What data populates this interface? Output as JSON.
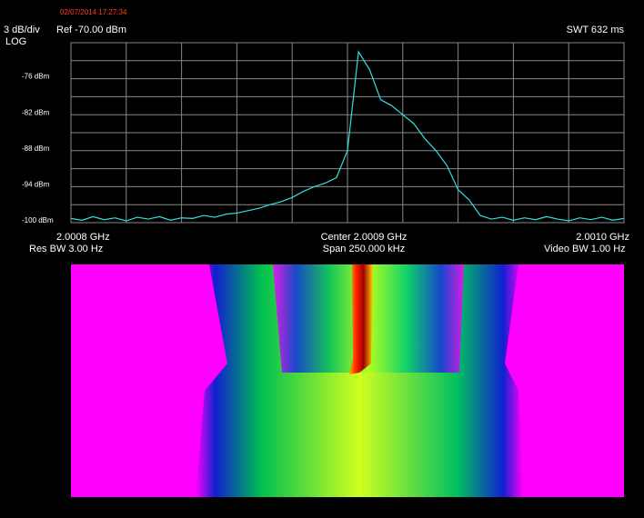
{
  "chart_data": {
    "type": "line",
    "timestamp": "02/07/2014 17:27:34",
    "scale_label": "3 dB/div",
    "ref_label": "Ref -70.00  dBm",
    "sweep_label": "SWT 632 ms",
    "scale_mode": "LOG",
    "start_label": "2.0008 GHz",
    "center_label": "Center 2.0009 GHz",
    "stop_label": "2.0010 GHz",
    "rbw_label": "Res BW 3.00  Hz",
    "span_label": "Span 250.000 kHz",
    "vbw_label": "Video BW 1.00  Hz",
    "x": [
      2.000775,
      2.00078,
      2.000785,
      2.00079,
      2.000795,
      2.0008,
      2.000805,
      2.00081,
      2.000815,
      2.00082,
      2.000825,
      2.00083,
      2.000835,
      2.00084,
      2.000845,
      2.00085,
      2.000855,
      2.00086,
      2.000865,
      2.00087,
      2.000875,
      2.00088,
      2.000885,
      2.00089,
      2.000895,
      2.0009,
      2.000905,
      2.00091,
      2.000915,
      2.00092,
      2.000925,
      2.00093,
      2.000935,
      2.00094,
      2.000945,
      2.00095,
      2.000955,
      2.00096,
      2.000965,
      2.00097,
      2.000975,
      2.00098,
      2.000985,
      2.00099,
      2.000995,
      2.001,
      2.001005,
      2.00101,
      2.001015,
      2.00102,
      2.001025
    ],
    "series": [
      {
        "color": "#30e0e0",
        "values": [
          -99.3,
          -99.6,
          -99.0,
          -99.5,
          -99.2,
          -99.7,
          -99.1,
          -99.4,
          -99.0,
          -99.6,
          -99.2,
          -99.3,
          -98.8,
          -99.1,
          -98.6,
          -98.4,
          -98.0,
          -97.6,
          -97.0,
          -96.5,
          -95.8,
          -94.8,
          -94.0,
          -93.4,
          -92.5,
          -88.0,
          -71.5,
          -74.5,
          -79.5,
          -80.5,
          -82.0,
          -83.5,
          -86.0,
          -88.0,
          -90.5,
          -94.5,
          -96.2,
          -98.8,
          -99.4,
          -99.1,
          -99.6,
          -99.2,
          -99.5,
          -99.0,
          -99.4,
          -99.7,
          -99.2,
          -99.5,
          -99.1,
          -99.6,
          -99.3
        ]
      }
    ],
    "xlim": [
      2.000775,
      2.001025
    ],
    "minor_xticks": [
      2.0008,
      2.000825,
      2.00085,
      2.000875,
      2.0009,
      2.000925,
      2.00095,
      2.000975,
      2.001
    ],
    "ylim": [
      -100,
      -70
    ],
    "yticks": [
      {
        "value": -76,
        "label": "-76 dBm"
      },
      {
        "value": -82,
        "label": "-82 dBm"
      },
      {
        "value": -88,
        "label": "-88 dBm"
      },
      {
        "value": -94,
        "label": "-94 dBm"
      },
      {
        "value": -100,
        "label": "-100 dBm"
      }
    ],
    "minor_yticks": [
      -73,
      -79,
      -85,
      -91,
      -97
    ],
    "grid": true
  }
}
